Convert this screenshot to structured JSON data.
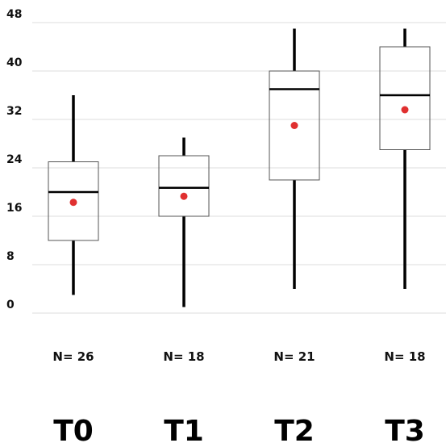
{
  "chart_data": {
    "type": "box",
    "title": "",
    "xlabel": "",
    "ylabel": "",
    "ylim": [
      0,
      48
    ],
    "yticks": [
      0,
      8,
      16,
      24,
      32,
      40,
      48
    ],
    "ytick_labels": [
      "0",
      "8",
      "16",
      "24",
      "32",
      "40",
      "48"
    ],
    "grid": true,
    "categories": [
      "T0",
      "T1",
      "T2",
      "T3"
    ],
    "n_labels": [
      "N= 26",
      "N= 18",
      "N= 21",
      "N= 18"
    ],
    "boxes": [
      {
        "min": 3,
        "q1": 12,
        "median": 20,
        "q3": 25,
        "max": 36,
        "mean": 18.3
      },
      {
        "min": 1,
        "q1": 16,
        "median": 20.7,
        "q3": 26,
        "max": 29,
        "mean": 19.3
      },
      {
        "min": 4,
        "q1": 22,
        "median": 37,
        "q3": 40,
        "max": 47,
        "mean": 31
      },
      {
        "min": 4,
        "q1": 27,
        "median": 36,
        "q3": 44,
        "max": 47,
        "mean": 33.6
      }
    ]
  },
  "colors": {
    "box_stroke": "#555555",
    "whisker": "#000000",
    "median": "#000000",
    "mean_dot": "#e03030",
    "grid": "#dddddd"
  }
}
